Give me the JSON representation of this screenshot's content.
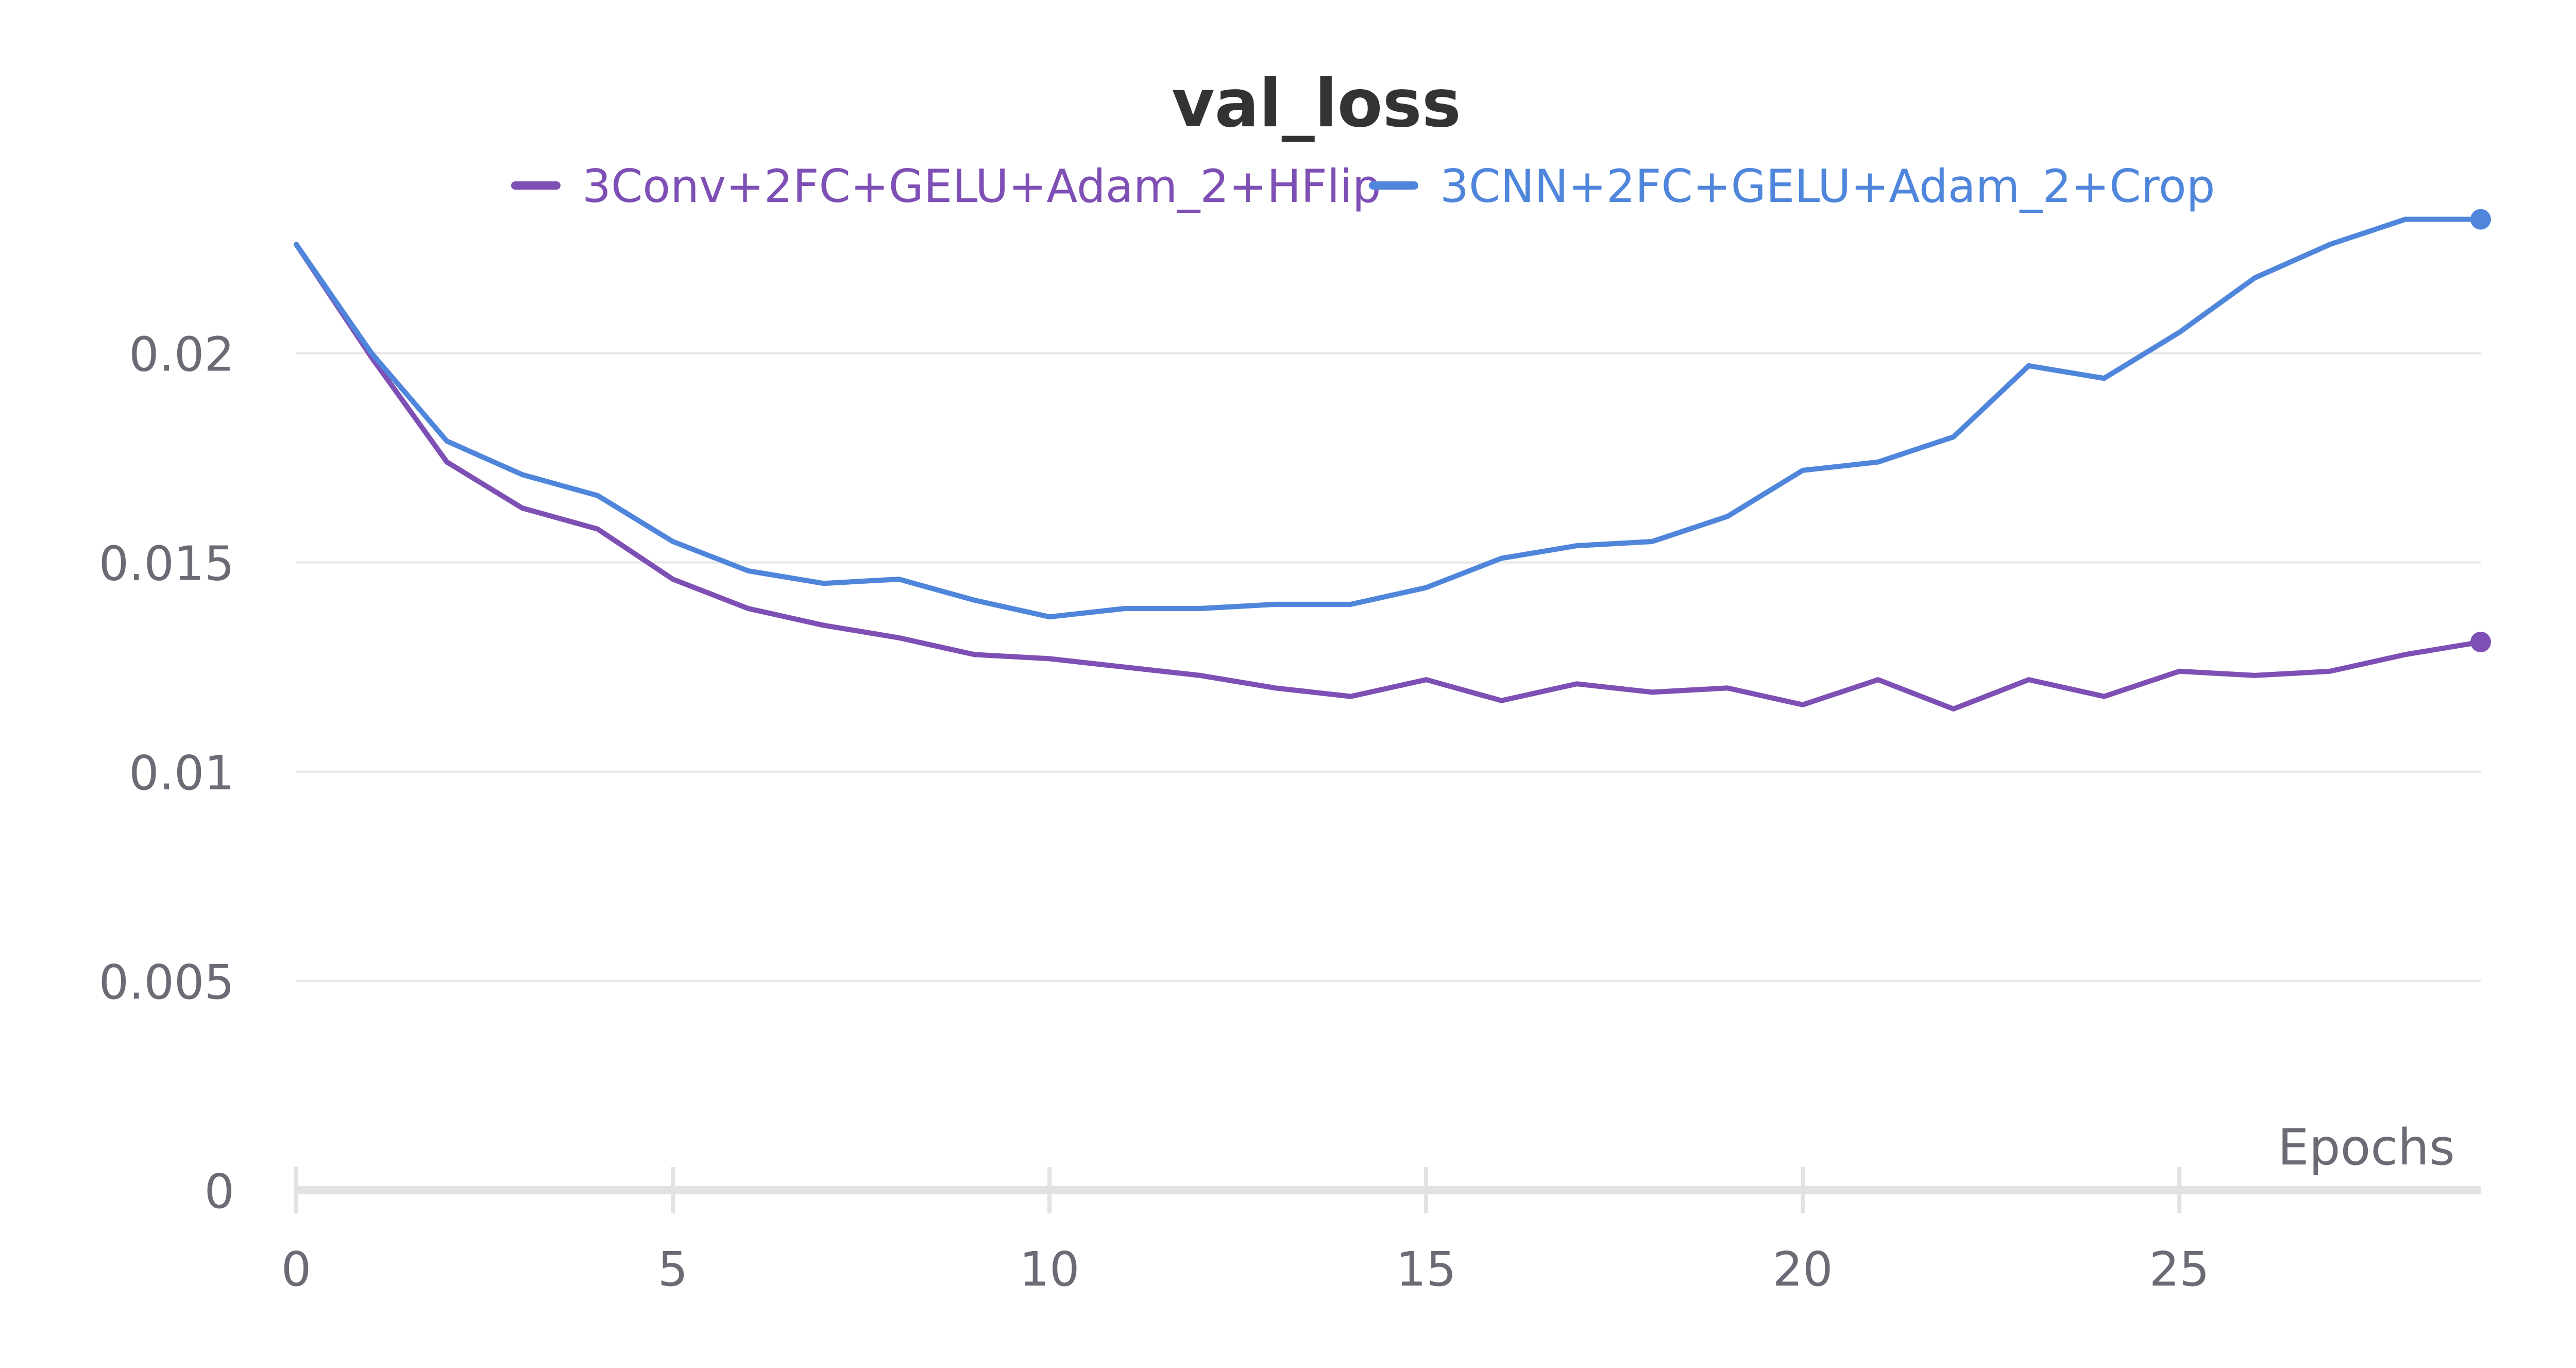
{
  "chart_data": {
    "type": "line",
    "title": "val_loss",
    "xlabel": "Epochs",
    "ylabel": "",
    "xlim": [
      0,
      29
    ],
    "ylim": [
      0,
      0.0245
    ],
    "x_ticks": [
      0,
      5,
      10,
      15,
      20,
      25
    ],
    "y_ticks": [
      0,
      0.005,
      0.01,
      0.015,
      0.02
    ],
    "y_tick_labels": [
      "0",
      "0.005",
      "0.01",
      "0.015",
      "0.02"
    ],
    "grid": "horizontal",
    "legend_position": "top-center",
    "x": [
      0,
      1,
      2,
      3,
      4,
      5,
      6,
      7,
      8,
      9,
      10,
      11,
      12,
      13,
      14,
      15,
      16,
      17,
      18,
      19,
      20,
      21,
      22,
      23,
      24,
      25,
      26,
      27,
      28,
      29
    ],
    "series": [
      {
        "name": "3Conv+2FC+GELU+Adam_2+HFlip",
        "color": "#7e4fb4",
        "values": [
          0.0226,
          0.0199,
          0.0174,
          0.0163,
          0.0158,
          0.0146,
          0.0139,
          0.0135,
          0.0132,
          0.0128,
          0.0127,
          0.0125,
          0.0123,
          0.012,
          0.0118,
          0.0122,
          0.0117,
          0.0121,
          0.0119,
          0.012,
          0.0116,
          0.0122,
          0.0115,
          0.0122,
          0.0118,
          0.0124,
          0.0123,
          0.0124,
          0.0128,
          0.0131
        ]
      },
      {
        "name": "3CNN+2FC+GELU+Adam_2+Crop",
        "color": "#4f86db",
        "values": [
          0.0226,
          0.02,
          0.0179,
          0.0171,
          0.0166,
          0.0155,
          0.0148,
          0.0145,
          0.0146,
          0.0141,
          0.0137,
          0.0139,
          0.0139,
          0.014,
          0.014,
          0.0144,
          0.0151,
          0.0154,
          0.0155,
          0.0161,
          0.0172,
          0.0174,
          0.018,
          0.0197,
          0.0194,
          0.0205,
          0.0218,
          0.0226,
          0.0232,
          0.0232
        ]
      }
    ]
  }
}
